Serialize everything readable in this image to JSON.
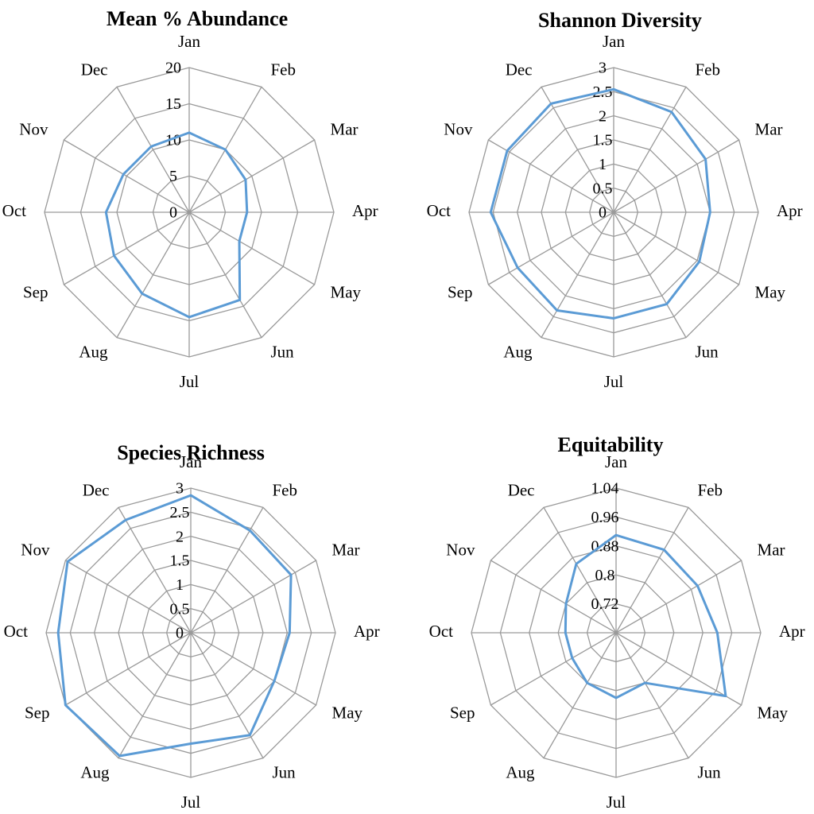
{
  "chart_data": [
    {
      "type": "radar",
      "title": "Mean % Abundance",
      "categories": [
        "Jan",
        "Feb",
        "Mar",
        "Apr",
        "May",
        "Jun",
        "Jul",
        "Aug",
        "Sep",
        "Oct",
        "Nov",
        "Dec"
      ],
      "rmin": 0,
      "rmax": 20,
      "rings": 4,
      "ticks": [
        0,
        5,
        10,
        15,
        20
      ],
      "tick_labels": [
        "0",
        "5",
        "10",
        "15",
        "20"
      ],
      "series": [
        {
          "values": [
            11,
            10,
            9,
            8,
            8,
            14,
            14.5,
            13,
            12,
            11.5,
            10.5,
            10.5
          ]
        }
      ]
    },
    {
      "type": "radar",
      "title": "Shannon  Diversity",
      "categories": [
        "Jan",
        "Feb",
        "Mar",
        "Apr",
        "May",
        "Jun",
        "Jul",
        "Aug",
        "Sep",
        "Oct",
        "Nov",
        "Dec"
      ],
      "rmin": 0,
      "rmax": 3,
      "rings": 6,
      "ticks": [
        0,
        0.5,
        1,
        1.5,
        2,
        2.5,
        3
      ],
      "tick_labels": [
        "0",
        "0.5",
        "1",
        "1.5",
        "2",
        "2.5",
        "3"
      ],
      "series": [
        {
          "values": [
            2.55,
            2.4,
            2.2,
            2.0,
            2.05,
            2.2,
            2.2,
            2.35,
            2.3,
            2.55,
            2.55,
            2.6
          ]
        }
      ]
    },
    {
      "type": "radar",
      "title": "Species Richness",
      "categories": [
        "Jan",
        "Feb",
        "Mar",
        "Apr",
        "May",
        "Jun",
        "Jul",
        "Aug",
        "Sep",
        "Oct",
        "Nov",
        "Dec"
      ],
      "rmin": 0,
      "rmax": 3,
      "rings": 6,
      "ticks": [
        0,
        0.5,
        1,
        1.5,
        2,
        2.5,
        3
      ],
      "tick_labels": [
        "0",
        "0.5",
        "1",
        "1.5",
        "2",
        "2.5",
        "3"
      ],
      "series": [
        {
          "values": [
            2.85,
            2.45,
            2.4,
            2.05,
            2.0,
            2.45,
            2.3,
            2.95,
            3.0,
            2.75,
            2.95,
            2.7
          ]
        }
      ]
    },
    {
      "type": "radar",
      "title": "Equitability",
      "categories": [
        "Jan",
        "Feb",
        "Mar",
        "Apr",
        "May",
        "Jun",
        "Jul",
        "Aug",
        "Sep",
        "Oct",
        "Nov",
        "Dec"
      ],
      "rmin": 0.64,
      "rmax": 1.04,
      "rings": 5,
      "ticks": [
        0.72,
        0.8,
        0.88,
        0.96,
        1.04
      ],
      "tick_labels": [
        "0.72",
        "0.8",
        "0.88",
        "0.96",
        "1.04"
      ],
      "series": [
        {
          "values": [
            0.91,
            0.905,
            0.9,
            0.92,
            0.99,
            0.8,
            0.82,
            0.8,
            0.78,
            0.78,
            0.8,
            0.86
          ]
        }
      ]
    }
  ]
}
